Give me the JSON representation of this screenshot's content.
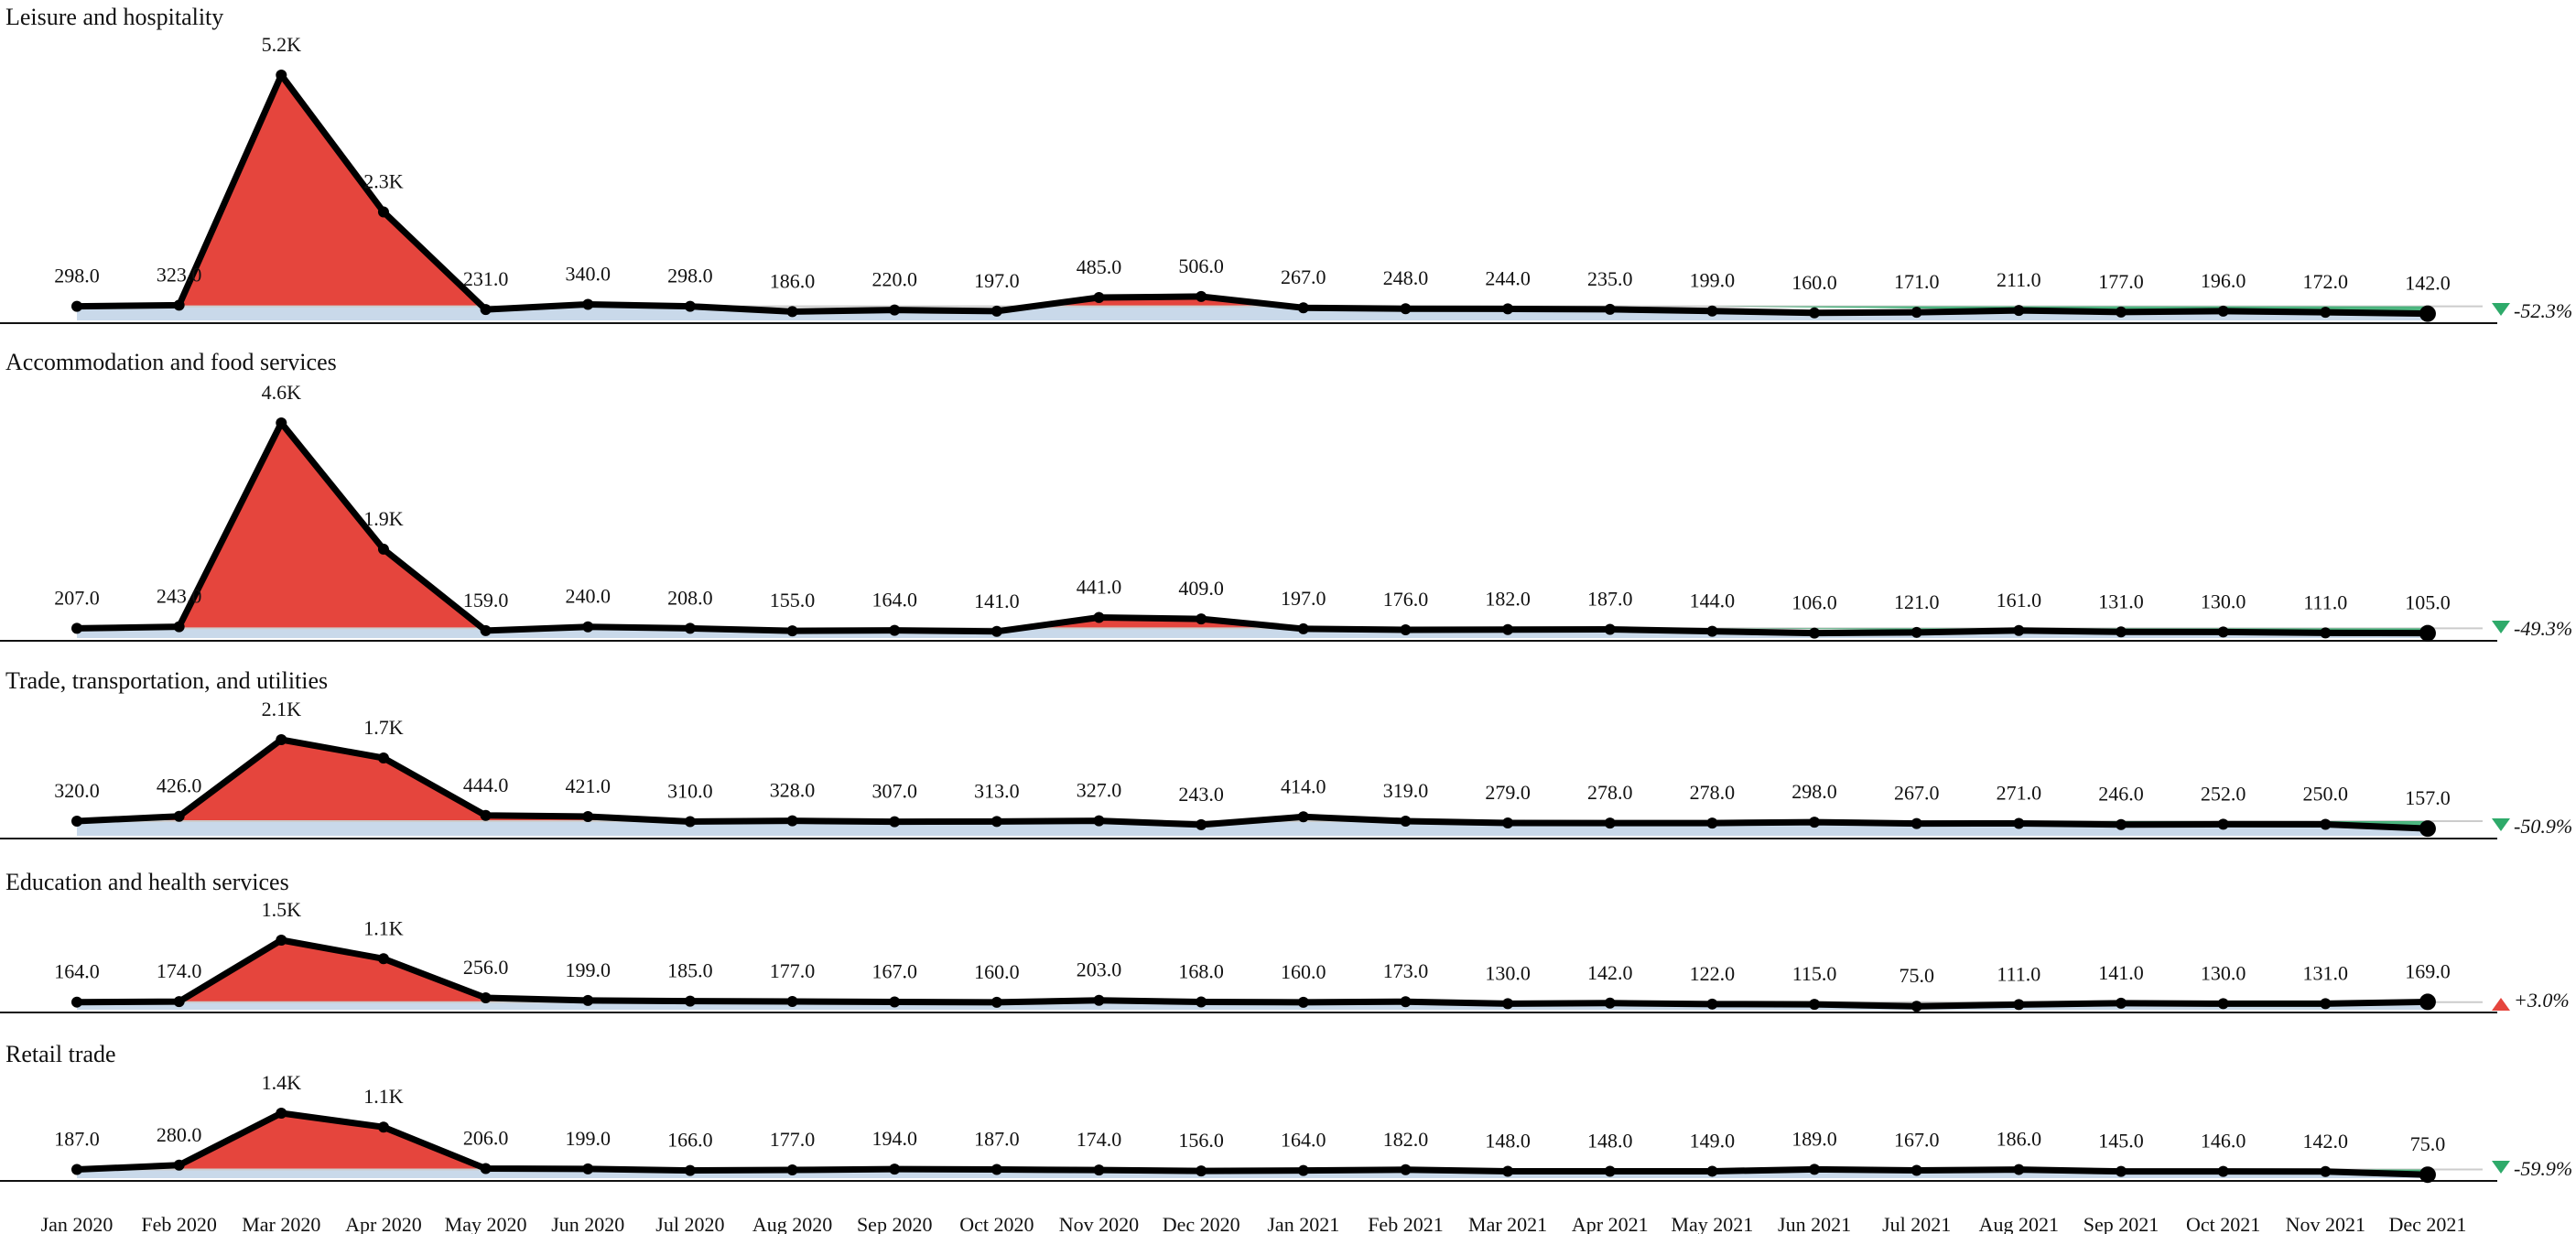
{
  "chart_data": {
    "type": "line",
    "x": [
      "Jan 2020",
      "Feb 2020",
      "Mar 2020",
      "Apr 2020",
      "May 2020",
      "Jun 2020",
      "Jul 2020",
      "Aug 2020",
      "Sep 2020",
      "Oct 2020",
      "Nov 2020",
      "Dec 2020",
      "Jan 2021",
      "Feb 2021",
      "Mar 2021",
      "Apr 2021",
      "May 2021",
      "Jun 2021",
      "Jul 2021",
      "Aug 2021",
      "Sep 2021",
      "Oct 2021",
      "Nov 2021",
      "Dec 2021"
    ],
    "panels": [
      {
        "title": "Leisure and hospitality",
        "values": [
          298,
          323,
          5200,
          2300,
          231,
          340,
          298,
          186,
          220,
          197,
          485,
          506,
          267,
          248,
          244,
          235,
          199,
          160,
          171,
          211,
          177,
          196,
          172,
          142
        ],
        "labels": [
          "298.0",
          "323.0",
          "5.2K",
          "2.3K",
          "231.0",
          "340.0",
          "298.0",
          "186.0",
          "220.0",
          "197.0",
          "485.0",
          "506.0",
          "267.0",
          "248.0",
          "244.0",
          "235.0",
          "199.0",
          "160.0",
          "171.0",
          "211.0",
          "177.0",
          "196.0",
          "172.0",
          "142.0"
        ],
        "change": "-52.3%",
        "direction": "down"
      },
      {
        "title": "Accommodation and food services",
        "values": [
          207,
          243,
          4600,
          1900,
          159,
          240,
          208,
          155,
          164,
          141,
          441,
          409,
          197,
          176,
          182,
          187,
          144,
          106,
          121,
          161,
          131,
          130,
          111,
          105
        ],
        "labels": [
          "207.0",
          "243.0",
          "4.6K",
          "1.9K",
          "159.0",
          "240.0",
          "208.0",
          "155.0",
          "164.0",
          "141.0",
          "441.0",
          "409.0",
          "197.0",
          "176.0",
          "182.0",
          "187.0",
          "144.0",
          "106.0",
          "121.0",
          "161.0",
          "131.0",
          "130.0",
          "111.0",
          "105.0"
        ],
        "change": "-49.3%",
        "direction": "down"
      },
      {
        "title": "Trade, transportation, and utilities",
        "values": [
          320,
          426,
          2100,
          1700,
          444,
          421,
          310,
          328,
          307,
          313,
          327,
          243,
          414,
          319,
          279,
          278,
          278,
          298,
          267,
          271,
          246,
          252,
          250,
          157
        ],
        "labels": [
          "320.0",
          "426.0",
          "2.1K",
          "1.7K",
          "444.0",
          "421.0",
          "310.0",
          "328.0",
          "307.0",
          "313.0",
          "327.0",
          "243.0",
          "414.0",
          "319.0",
          "279.0",
          "278.0",
          "278.0",
          "298.0",
          "267.0",
          "271.0",
          "246.0",
          "252.0",
          "250.0",
          "157.0"
        ],
        "change": "-50.9%",
        "direction": "down"
      },
      {
        "title": "Education and health services",
        "values": [
          164,
          174,
          1500,
          1100,
          256,
          199,
          185,
          177,
          167,
          160,
          203,
          168,
          160,
          173,
          130,
          142,
          122,
          115,
          75,
          111,
          141,
          130,
          131,
          169
        ],
        "labels": [
          "164.0",
          "174.0",
          "1.5K",
          "1.1K",
          "256.0",
          "199.0",
          "185.0",
          "177.0",
          "167.0",
          "160.0",
          "203.0",
          "168.0",
          "160.0",
          "173.0",
          "130.0",
          "142.0",
          "122.0",
          "115.0",
          "75.0",
          "111.0",
          "141.0",
          "130.0",
          "131.0",
          "169.0"
        ],
        "change": "+3.0%",
        "direction": "up"
      },
      {
        "title": "Retail trade",
        "values": [
          187,
          280,
          1400,
          1100,
          206,
          199,
          166,
          177,
          194,
          187,
          174,
          156,
          164,
          182,
          148,
          148,
          149,
          189,
          167,
          186,
          145,
          146,
          142,
          75
        ],
        "labels": [
          "187.0",
          "280.0",
          "1.4K",
          "1.1K",
          "206.0",
          "199.0",
          "166.0",
          "177.0",
          "194.0",
          "187.0",
          "174.0",
          "156.0",
          "164.0",
          "182.0",
          "148.0",
          "148.0",
          "149.0",
          "189.0",
          "167.0",
          "186.0",
          "145.0",
          "146.0",
          "142.0",
          "75.0"
        ],
        "change": "-59.9%",
        "direction": "down"
      }
    ],
    "colors": {
      "line": "#000000",
      "above_baseline": "#e5453d",
      "below_baseline": "#c9d9ea",
      "down_indicator": "#2eaa6a",
      "up_indicator": "#e5453d",
      "reference_line": "#cccccc"
    }
  }
}
